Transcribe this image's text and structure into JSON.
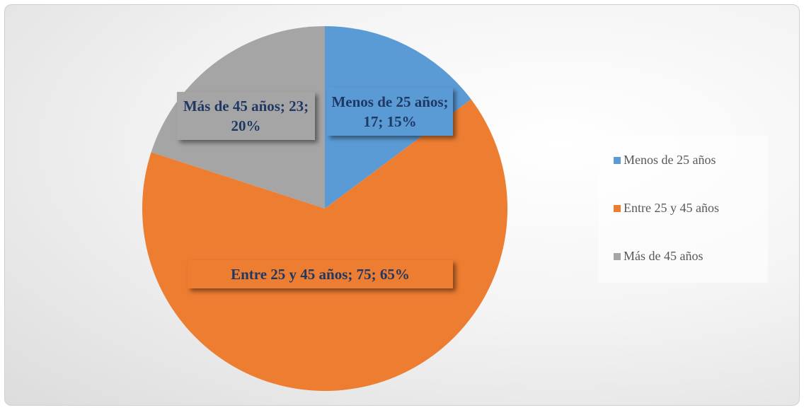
{
  "chart_data": {
    "type": "pie",
    "categories": [
      "Menos de 25 años",
      "Entre 25 y 45 años",
      "Más de 45 años"
    ],
    "values": [
      17,
      75,
      23
    ],
    "value_labels": [
      "Menos de 25 años; 17; 15%",
      "Entre 25 y 45 años; 75; 65%",
      "Más de 45 años; 23; 20%"
    ],
    "colors": [
      "#5b9bd5",
      "#ed7d31",
      "#a5a5a5"
    ],
    "legend": "right"
  }
}
